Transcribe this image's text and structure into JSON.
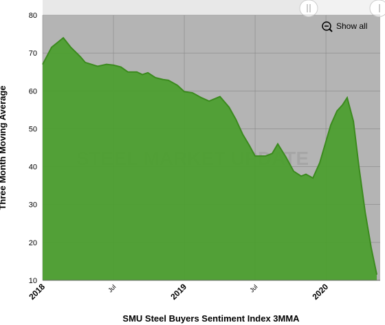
{
  "chart_data": {
    "type": "area",
    "title": "SMU Steel Buyers Sentiment Index 3MMA",
    "y_label": "Three Month Moving Average",
    "watermark": "STEEL MARKET UPDATE",
    "button": "Show all",
    "color": "#4a9e2c",
    "grid": true,
    "x": [
      2018.0,
      2018.063,
      2018.146,
      2018.199,
      2018.267,
      2018.301,
      2018.345,
      2018.388,
      2018.451,
      2018.5,
      2018.553,
      2018.602,
      2018.665,
      2018.704,
      2018.743,
      2018.796,
      2018.85,
      2018.888,
      2018.951,
      2019.0,
      2019.058,
      2019.121,
      2019.175,
      2019.252,
      2019.316,
      2019.364,
      2019.413,
      2019.461,
      2019.5,
      2019.573,
      2019.621,
      2019.66,
      2019.718,
      2019.772,
      2019.825,
      2019.859,
      2019.908,
      2019.956,
      2020.034,
      2020.078,
      2020.117,
      2020.15,
      2020.194,
      2020.233,
      2020.277,
      2020.32,
      2020.359
    ],
    "values": [
      67,
      71.5,
      74,
      71.5,
      69,
      67.5,
      67,
      66.5,
      67,
      66.8,
      66.3,
      65,
      65,
      64.3,
      64.8,
      63.5,
      63,
      62.8,
      61.5,
      59.8,
      59.5,
      58.2,
      57.3,
      58.5,
      55.7,
      52.5,
      48.5,
      45.5,
      42.8,
      42.8,
      43.5,
      46,
      42.5,
      38.8,
      37.5,
      38,
      37,
      41,
      51,
      54.7,
      56.3,
      58.2,
      52,
      40,
      28,
      18.5,
      11.5
    ],
    "xlim": [
      2018,
      2020.383
    ],
    "xticks": [
      {
        "value": 2018,
        "label": "2018"
      },
      {
        "value": 2018.5,
        "label": "Jul"
      },
      {
        "value": 2019,
        "label": "2019"
      },
      {
        "value": 2019.5,
        "label": "Jul"
      },
      {
        "value": 2020,
        "label": "2020"
      }
    ],
    "ylim": [
      10,
      80
    ],
    "yticks": [
      10,
      20,
      30,
      40,
      50,
      60,
      70,
      80
    ]
  }
}
